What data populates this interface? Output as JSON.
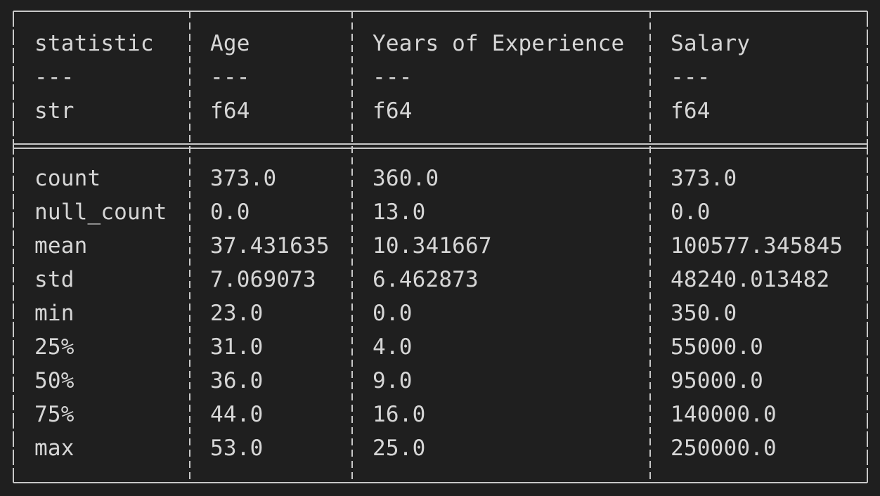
{
  "table": {
    "headers": [
      "statistic",
      "Age",
      "Years of Experience",
      "Salary"
    ],
    "separators": [
      "---",
      "---",
      "---",
      "---"
    ],
    "dtypes": [
      "str",
      "f64",
      "f64",
      "f64"
    ],
    "rows": [
      [
        "count",
        "373.0",
        "360.0",
        "373.0"
      ],
      [
        "null_count",
        "0.0",
        "13.0",
        "0.0"
      ],
      [
        "mean",
        "37.431635",
        "10.341667",
        "100577.345845"
      ],
      [
        "std",
        "7.069073",
        "6.462873",
        "48240.013482"
      ],
      [
        "min",
        "23.0",
        "0.0",
        "350.0"
      ],
      [
        "25%",
        "31.0",
        "4.0",
        "55000.0"
      ],
      [
        "50%",
        "36.0",
        "9.0",
        "95000.0"
      ],
      [
        "75%",
        "44.0",
        "16.0",
        "140000.0"
      ],
      [
        "max",
        "53.0",
        "25.0",
        "250000.0"
      ]
    ]
  },
  "colors": {
    "background": "#1f1f1f",
    "text": "#d6d6d6",
    "border": "#c8c8c8"
  }
}
